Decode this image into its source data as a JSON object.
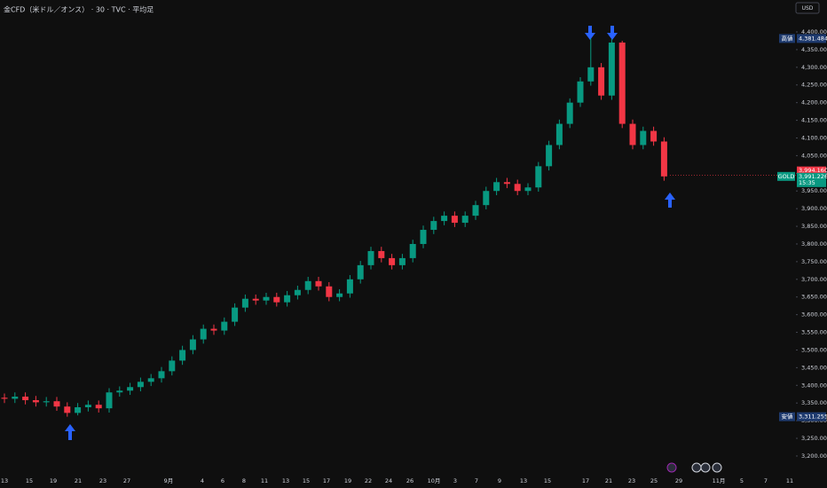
{
  "chart_data": {
    "type": "candlestick",
    "title": "金CFD（米ドル／オンス） · 30 · TVC · 平均足",
    "currency": "USD",
    "up_color": "#089981",
    "down_color": "#f23645",
    "ylim": [
      3159.7,
      4490.4
    ],
    "yticks": [
      {
        "value": 3200,
        "label": "3,200.000"
      },
      {
        "value": 3250,
        "label": "3,250.000"
      },
      {
        "value": 3300,
        "label": "3,300.000"
      },
      {
        "value": 3350,
        "label": "3,350.000"
      },
      {
        "value": 3400,
        "label": "3,400.000"
      },
      {
        "value": 3450,
        "label": "3,450.000"
      },
      {
        "value": 3500,
        "label": "3,500.000"
      },
      {
        "value": 3550,
        "label": "3,550.000"
      },
      {
        "value": 3600,
        "label": "3,600.000"
      },
      {
        "value": 3650,
        "label": "3,650.000"
      },
      {
        "value": 3700,
        "label": "3,700.000"
      },
      {
        "value": 3750,
        "label": "3,750.000"
      },
      {
        "value": 3800,
        "label": "3,800.000"
      },
      {
        "value": 3850,
        "label": "3,850.000"
      },
      {
        "value": 3900,
        "label": "3,900.000"
      },
      {
        "value": 3950,
        "label": "3,950.000"
      },
      {
        "value": 4000,
        "label": "4,000.000"
      },
      {
        "value": 4050,
        "label": "4,050.000"
      },
      {
        "value": 4100,
        "label": "4,100.000"
      },
      {
        "value": 4150,
        "label": "4,150.000"
      },
      {
        "value": 4200,
        "label": "4,200.000"
      },
      {
        "value": 4250,
        "label": "4,250.000"
      },
      {
        "value": 4300,
        "label": "4,300.000"
      },
      {
        "value": 4350,
        "label": "4,350.000"
      },
      {
        "value": 4400,
        "label": "4,400.000"
      }
    ],
    "x_labels": [
      "13",
      "15",
      "19",
      "21",
      "23",
      "27",
      "9月",
      "4",
      "6",
      "8",
      "11",
      "13",
      "15",
      "17",
      "19",
      "22",
      "24",
      "26",
      "10月",
      "3",
      "7",
      "9",
      "13",
      "15",
      "17",
      "21",
      "23",
      "25",
      "29",
      "11月",
      "5",
      "7",
      "11"
    ],
    "open": [
      3365,
      3362,
      3368,
      3358,
      3352,
      3355,
      3340,
      3322,
      3338,
      3345,
      3335,
      3380,
      3385,
      3395,
      3410,
      3420,
      3440,
      3470,
      3500,
      3530,
      3560,
      3555,
      3580,
      3620,
      3645,
      3640,
      3650,
      3635,
      3655,
      3670,
      3695,
      3680,
      3650,
      3660,
      3700,
      3740,
      3780,
      3760,
      3740,
      3760,
      3800,
      3840,
      3865,
      3880,
      3860,
      3880,
      3910,
      3950,
      3975,
      3970,
      3950,
      3960,
      4020,
      4080,
      4140,
      4200,
      4260,
      4300,
      4220,
      4370,
      4140,
      4080,
      4120,
      4090
    ],
    "high": [
      3377,
      3380,
      3380,
      3370,
      3367,
      3367,
      3352,
      3350,
      3357,
      3357,
      3392,
      3397,
      3407,
      3422,
      3432,
      3452,
      3482,
      3512,
      3542,
      3572,
      3572,
      3592,
      3632,
      3657,
      3657,
      3662,
      3662,
      3667,
      3682,
      3707,
      3707,
      3692,
      3672,
      3712,
      3752,
      3792,
      3792,
      3772,
      3772,
      3812,
      3852,
      3877,
      3892,
      3892,
      3892,
      3922,
      3962,
      3987,
      3987,
      3982,
      3972,
      4032,
      4092,
      4152,
      4212,
      4272,
      4381.484,
      4312,
      4380,
      4375,
      4152,
      4132,
      4132,
      4102
    ],
    "low": [
      3350,
      3350,
      3346,
      3340,
      3340,
      3328,
      3311.255,
      3315,
      3326,
      3323,
      3323,
      3368,
      3373,
      3383,
      3398,
      3408,
      3428,
      3458,
      3488,
      3518,
      3543,
      3543,
      3568,
      3608,
      3628,
      3628,
      3623,
      3623,
      3643,
      3658,
      3668,
      3638,
      3638,
      3648,
      3688,
      3728,
      3748,
      3728,
      3728,
      3748,
      3788,
      3828,
      3853,
      3848,
      3848,
      3868,
      3898,
      3938,
      3958,
      3938,
      3938,
      3948,
      4008,
      4068,
      4128,
      4188,
      4248,
      4208,
      4208,
      4128,
      4068,
      4068,
      4078,
      3979
    ],
    "close": [
      3362,
      3368,
      3358,
      3352,
      3355,
      3340,
      3322,
      3338,
      3345,
      3335,
      3380,
      3385,
      3395,
      3410,
      3420,
      3440,
      3470,
      3500,
      3530,
      3560,
      3555,
      3580,
      3620,
      3645,
      3640,
      3650,
      3635,
      3655,
      3670,
      3695,
      3680,
      3650,
      3660,
      3700,
      3740,
      3780,
      3760,
      3740,
      3760,
      3800,
      3840,
      3865,
      3880,
      3860,
      3880,
      3910,
      3950,
      3975,
      3970,
      3950,
      3960,
      4020,
      4080,
      4140,
      4200,
      4260,
      4300,
      4220,
      4370,
      4140,
      4080,
      4120,
      4090,
      3991.226
    ],
    "high_label": {
      "name": "高値",
      "value": 4381.484,
      "label": "4,381.484"
    },
    "low_label": {
      "name": "安値",
      "value": 3311.255,
      "label": "3,311.255"
    },
    "last_price": {
      "value": 3994.16,
      "label": "3,994.160"
    },
    "symbol_price": {
      "name": "GOLD",
      "value": 3991.226,
      "label": "3,991.226",
      "countdown": "15:35"
    }
  }
}
